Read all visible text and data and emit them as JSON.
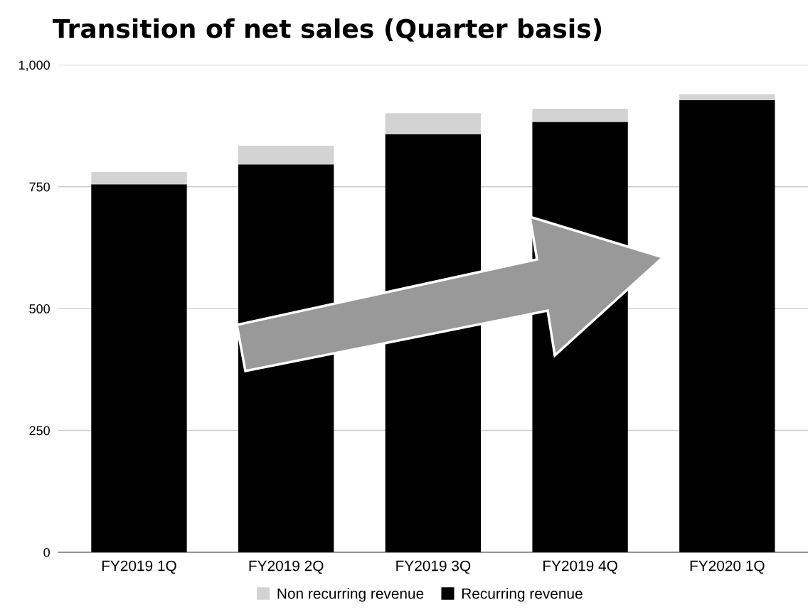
{
  "chart_data": {
    "type": "bar",
    "title": "Transition of net sales (Quarter basis)",
    "stacked": true,
    "categories": [
      "FY2019 1Q",
      "FY2019 2Q",
      "FY2019 3Q",
      "FY2019 4Q",
      "FY2020 1Q"
    ],
    "series": [
      {
        "name": "Recurring revenue",
        "color": "#000000",
        "values": [
          755,
          796,
          858,
          883,
          928
        ]
      },
      {
        "name": "Non recurring revenue",
        "color": "#d3d3d3",
        "values": [
          25,
          38,
          43,
          27,
          12
        ]
      }
    ],
    "ylim": [
      0,
      1000
    ],
    "yticks": [
      0,
      {
        "value": 250,
        "label": "250"
      },
      {
        "value": 500,
        "label": "500"
      },
      {
        "value": 750,
        "label": "750"
      },
      {
        "value": 1000,
        "label": "1,000"
      }
    ],
    "grid": "y",
    "legend": "bottom"
  }
}
